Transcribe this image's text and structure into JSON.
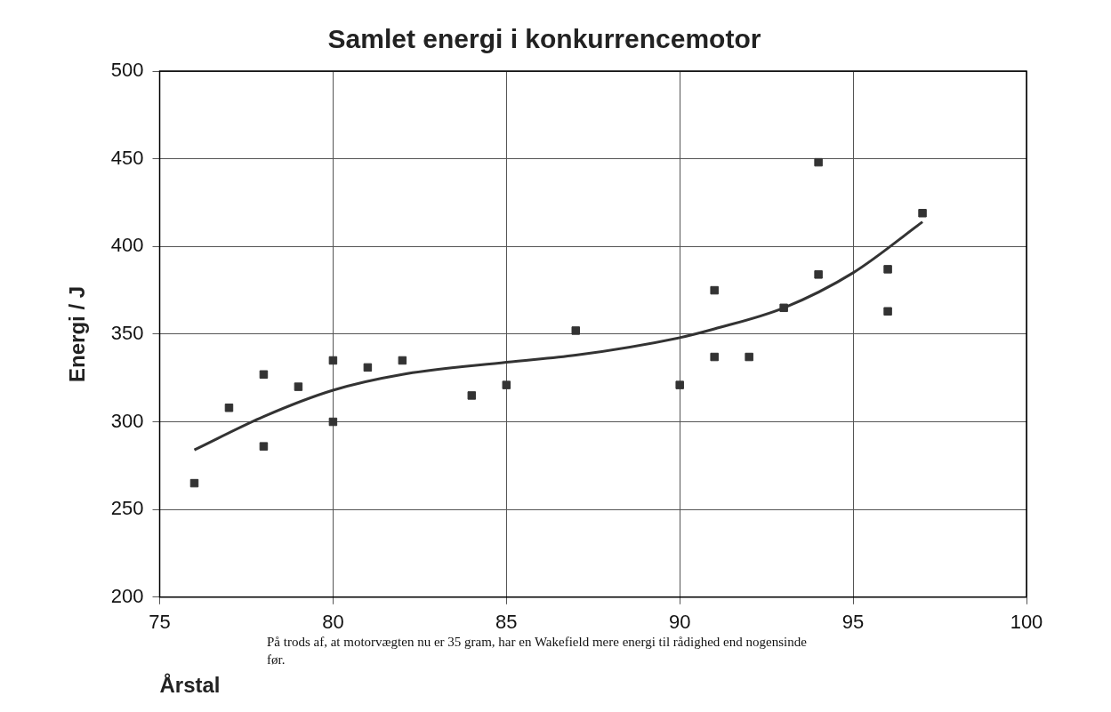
{
  "chart_data": {
    "type": "scatter",
    "title": "Samlet energi i konkurrencemotor",
    "xlabel": "Årstal",
    "ylabel": "Energi / J",
    "annotations": [
      "På trods af, at motorvægten nu er 35 gram, har en Wakefield mere energi til rådighed end nogensinde før."
    ],
    "series": [
      {
        "color": "#333333",
        "marker": "square",
        "x": [
          76,
          77,
          78,
          78,
          79,
          80,
          80,
          81,
          82,
          84,
          85,
          87,
          90,
          91,
          91,
          92,
          93,
          94,
          94,
          96,
          96,
          97
        ],
        "values": [
          265,
          308,
          327,
          286,
          320,
          335,
          300,
          331,
          335,
          315,
          321,
          352,
          321,
          375,
          337,
          337,
          365,
          448,
          384,
          387,
          363,
          419
        ]
      },
      {
        "type": "line",
        "color": "#333333",
        "marker": "none",
        "x": [
          76,
          78,
          80,
          82,
          85,
          87,
          90,
          91,
          93,
          95,
          97
        ],
        "values": [
          284,
          303,
          318,
          327,
          334,
          338,
          348,
          353,
          365,
          385,
          414
        ]
      }
    ],
    "xlim": [
      75,
      100
    ],
    "xticks": [
      75,
      80,
      85,
      90,
      95,
      100
    ],
    "ylim": [
      200,
      500
    ],
    "yticks": [
      200,
      250,
      300,
      350,
      400,
      450,
      500
    ],
    "grid": true,
    "legend": false
  }
}
